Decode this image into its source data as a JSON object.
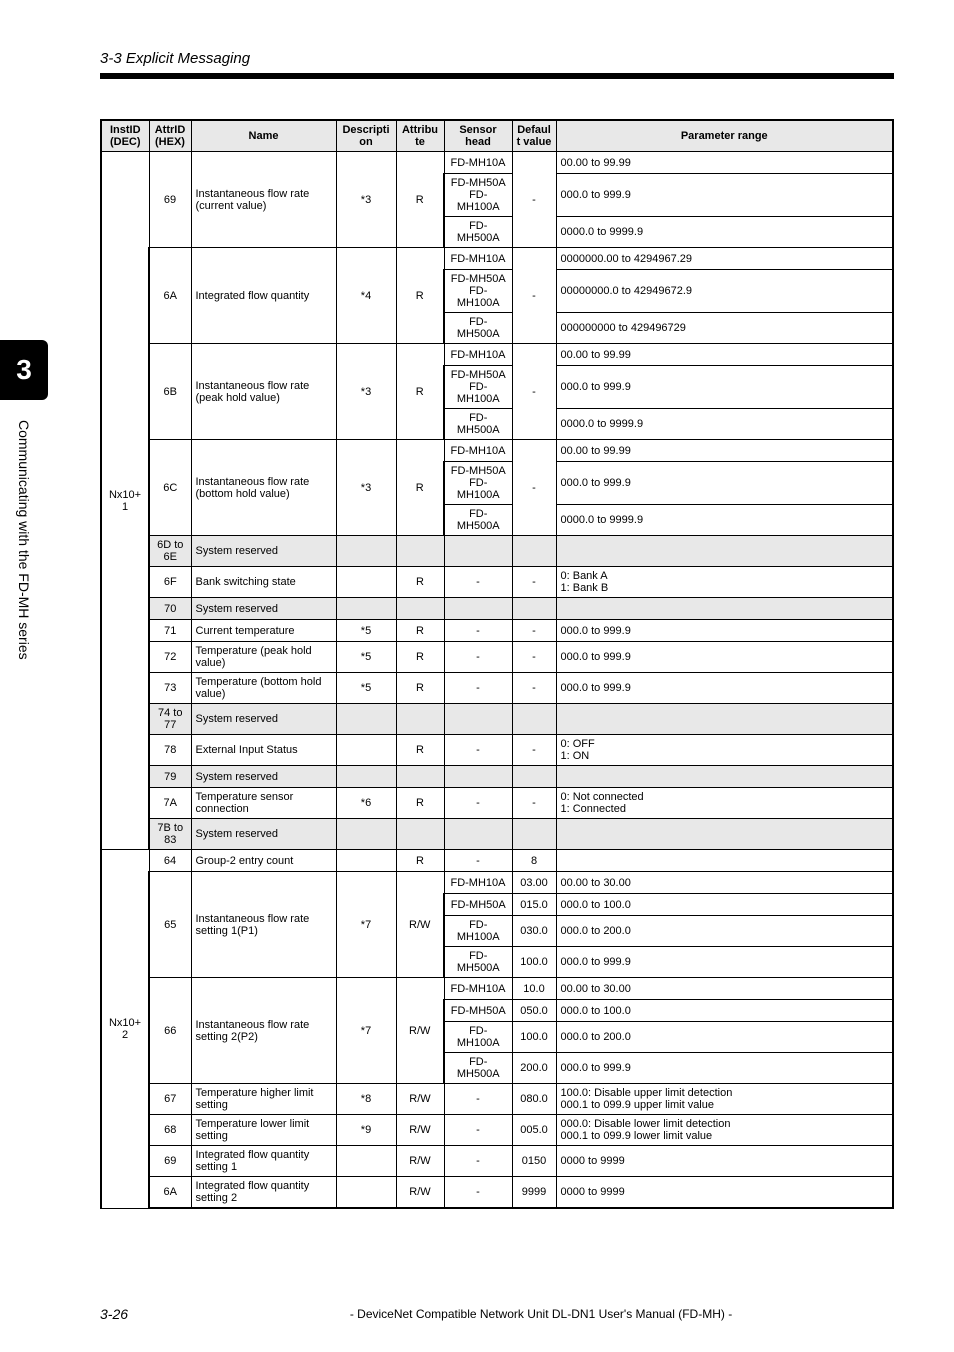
{
  "header": {
    "section": "3-3  Explicit Messaging"
  },
  "sidebar": {
    "chapter": "3",
    "label": "Communicating with the FD-MH series"
  },
  "table": {
    "headers": {
      "instid": "InstID (DEC)",
      "attrid": "AttrID (HEX)",
      "name": "Name",
      "description": "Description",
      "attribute": "Attribute",
      "sensor": "Sensor head",
      "default": "Default value",
      "range": "Parameter range"
    },
    "groups": [
      {
        "instid": "Nx10+1",
        "blocks": [
          {
            "attrid": "69",
            "name": "Instantaneous flow rate (current value)",
            "desc": "*3",
            "attr": "R",
            "default": "-",
            "sensors": [
              {
                "head": "FD-MH10A",
                "range": "00.00 to 99.99"
              },
              {
                "head": "FD-MH50A FD-MH100A",
                "range": "000.0 to 999.9"
              },
              {
                "head": "FD-MH500A",
                "range": "0000.0 to 9999.9"
              }
            ]
          },
          {
            "attrid": "6A",
            "name": "Integrated flow quantity",
            "desc": "*4",
            "attr": "R",
            "default": "-",
            "sensors": [
              {
                "head": "FD-MH10A",
                "range": "0000000.00 to 4294967.29"
              },
              {
                "head": "FD-MH50A FD-MH100A",
                "range": "00000000.0 to 42949672.9"
              },
              {
                "head": "FD-MH500A",
                "range": "000000000 to 429496729"
              }
            ]
          },
          {
            "attrid": "6B",
            "name": "Instantaneous flow rate (peak hold value)",
            "desc": "*3",
            "attr": "R",
            "default": "-",
            "sensors": [
              {
                "head": "FD-MH10A",
                "range": "00.00 to 99.99"
              },
              {
                "head": "FD-MH50A FD-MH100A",
                "range": "000.0 to 999.9"
              },
              {
                "head": "FD-MH500A",
                "range": "0000.0 to 9999.9"
              }
            ]
          },
          {
            "attrid": "6C",
            "name": "Instantaneous flow rate (bottom hold value)",
            "desc": "*3",
            "attr": "R",
            "default": "-",
            "sensors": [
              {
                "head": "FD-MH10A",
                "range": "00.00 to 99.99"
              },
              {
                "head": "FD-MH50A FD-MH100A",
                "range": "000.0 to 999.9"
              },
              {
                "head": "FD-MH500A",
                "range": "0000.0 to 9999.9"
              }
            ]
          },
          {
            "attrid": "6D to 6E",
            "name": "System reserved",
            "reserved": true
          },
          {
            "attrid": "6F",
            "name": "Bank switching state",
            "desc": "",
            "attr": "R",
            "sensor": "-",
            "default": "-",
            "range": "0: Bank A\n1: Bank B"
          },
          {
            "attrid": "70",
            "name": "System reserved",
            "reserved": true
          },
          {
            "attrid": "71",
            "name": "Current temperature",
            "desc": "*5",
            "attr": "R",
            "sensor": "-",
            "default": "-",
            "range": "000.0 to 999.9"
          },
          {
            "attrid": "72",
            "name": "Temperature (peak hold value)",
            "desc": "*5",
            "attr": "R",
            "sensor": "-",
            "default": "-",
            "range": "000.0 to 999.9"
          },
          {
            "attrid": "73",
            "name": "Temperature (bottom hold value)",
            "desc": "*5",
            "attr": "R",
            "sensor": "-",
            "default": "-",
            "range": "000.0 to 999.9"
          },
          {
            "attrid": "74 to 77",
            "name": "System reserved",
            "reserved": true
          },
          {
            "attrid": "78",
            "name": "External Input Status",
            "desc": "",
            "attr": "R",
            "sensor": "-",
            "default": "-",
            "range": "0: OFF\n1: ON"
          },
          {
            "attrid": "79",
            "name": "System reserved",
            "reserved": true
          },
          {
            "attrid": "7A",
            "name": "Temperature sensor connection",
            "desc": "*6",
            "attr": "R",
            "sensor": "-",
            "default": "-",
            "range": "0: Not connected\n1: Connected"
          },
          {
            "attrid": "7B to 83",
            "name": "System reserved",
            "reserved": true
          }
        ]
      },
      {
        "instid": "Nx10+2",
        "blocks": [
          {
            "attrid": "64",
            "name": "Group-2 entry count",
            "desc": "",
            "attr": "R",
            "sensor": "-",
            "default": "8",
            "range": ""
          },
          {
            "attrid": "65",
            "name": "Instantaneous flow rate setting 1(P1)",
            "desc": "*7",
            "attr": "R/W",
            "perSensor": [
              {
                "head": "FD-MH10A",
                "default": "03.00",
                "range": "00.00 to 30.00"
              },
              {
                "head": "FD-MH50A",
                "default": "015.0",
                "range": "000.0 to 100.0"
              },
              {
                "head": "FD-MH100A",
                "default": "030.0",
                "range": "000.0 to 200.0"
              },
              {
                "head": "FD-MH500A",
                "default": "100.0",
                "range": "000.0 to 999.9"
              }
            ]
          },
          {
            "attrid": "66",
            "name": "Instantaneous flow rate setting 2(P2)",
            "desc": "*7",
            "attr": "R/W",
            "perSensor": [
              {
                "head": "FD-MH10A",
                "default": "10.0",
                "range": "00.00 to 30.00"
              },
              {
                "head": "FD-MH50A",
                "default": "050.0",
                "range": "000.0 to 100.0"
              },
              {
                "head": "FD-MH100A",
                "default": "100.0",
                "range": "000.0 to 200.0"
              },
              {
                "head": "FD-MH500A",
                "default": "200.0",
                "range": "000.0 to 999.9"
              }
            ]
          },
          {
            "attrid": "67",
            "name": "Temperature higher limit setting",
            "desc": "*8",
            "attr": "R/W",
            "sensor": "-",
            "default": "080.0",
            "range": "100.0: Disable upper limit detection\n000.1 to 099.9 upper limit value"
          },
          {
            "attrid": "68",
            "name": "Temperature lower limit setting",
            "desc": "*9",
            "attr": "R/W",
            "sensor": "-",
            "default": "005.0",
            "range": "000.0: Disable lower limit detection\n000.1 to 099.9 lower limit value"
          },
          {
            "attrid": "69",
            "name": "Integrated flow quantity setting 1",
            "desc": "",
            "attr": "R/W",
            "sensor": "-",
            "default": "0150",
            "range": "0000 to 9999"
          },
          {
            "attrid": "6A",
            "name": "Integrated flow quantity setting 2",
            "desc": "",
            "attr": "R/W",
            "sensor": "-",
            "default": "9999",
            "range": "0000 to 9999"
          }
        ]
      }
    ]
  },
  "footer": {
    "page": "3-26",
    "text": "- DeviceNet Compatible Network Unit DL-DN1 User's Manual (FD-MH) -"
  }
}
